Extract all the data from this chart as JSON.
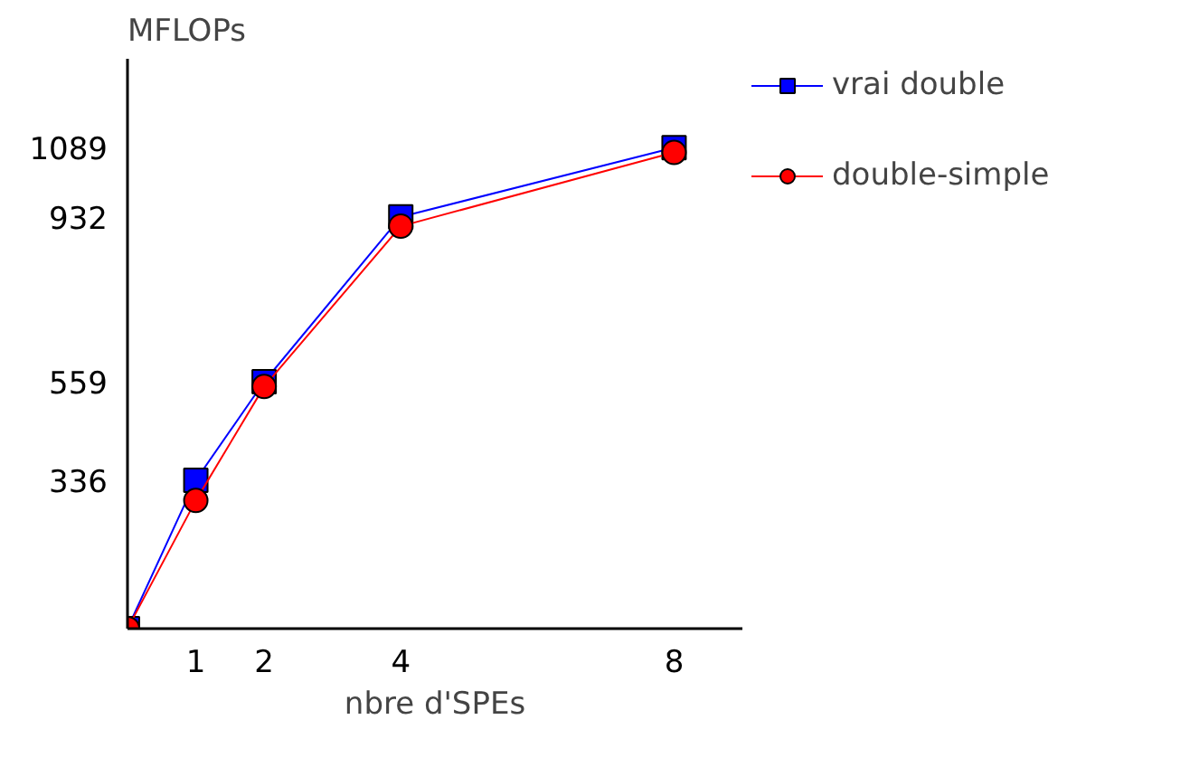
{
  "chart_data": {
    "type": "line",
    "xlabel": "nbre d'SPEs",
    "ylabel": "MFLOPs",
    "x": [
      0,
      1,
      2,
      4,
      8
    ],
    "xlim": [
      0,
      9
    ],
    "xticks": [
      1,
      2,
      4,
      8
    ],
    "ylim": [
      0,
      1290
    ],
    "yticks": [
      336,
      559,
      932,
      1089
    ],
    "grid": false,
    "legend": "right",
    "series": [
      {
        "name": "vrai double",
        "color": "#0000ff",
        "marker": "square",
        "values": [
          0,
          336,
          559,
          932,
          1089
        ]
      },
      {
        "name": "double-simple",
        "color": "#ff0000",
        "marker": "circle",
        "values": [
          0,
          290,
          548,
          911,
          1078
        ]
      }
    ]
  }
}
